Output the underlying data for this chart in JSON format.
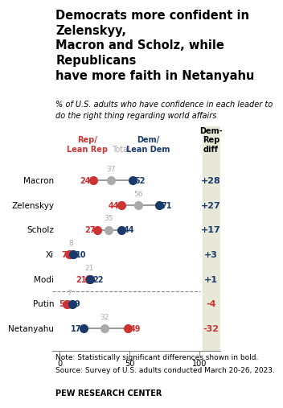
{
  "title": "Democrats more confident in Zelenskyy,\nMacron and Scholz, while Republicans\nhave more faith in Netanyahu",
  "subtitle_plain": "% of U.S. adults who have ",
  "subtitle_bold": "confidence",
  "subtitle_rest": " in each leader to\ndo the right thing regarding world affairs",
  "leaders": [
    "Macron",
    "Zelenskyy",
    "Scholz",
    "Xi",
    "Modi",
    "Putin",
    "Netanyahu"
  ],
  "rep_values": [
    24,
    44,
    27,
    7,
    21,
    5,
    49
  ],
  "total_values": [
    37,
    56,
    35,
    8,
    21,
    7,
    32
  ],
  "dem_values": [
    52,
    71,
    44,
    10,
    22,
    9,
    17
  ],
  "diff_values": [
    "+28",
    "+27",
    "+17",
    "+3",
    "+1",
    "-4",
    "-32"
  ],
  "rep_color": "#cc3333",
  "dem_color": "#1a3a6b",
  "total_color": "#aaaaaa",
  "line_color": "#888888",
  "diff_bg": "#e8e8d8",
  "note": "Note: Statistically significant differences shown in ",
  "note_bold": "bold.",
  "source": "Source: Survey of U.S. adults conducted March 20-26, 2023.",
  "footer": "PEW RESEARCH CENTER",
  "xlim": [
    0,
    100
  ],
  "header_colors": [
    "#cc3333",
    "#888888",
    "#1a3a6b"
  ],
  "header_labels": [
    "Rep/\nLean Rep",
    "Total",
    "Dem/\nLean Dem"
  ],
  "separator_after_index": 4
}
